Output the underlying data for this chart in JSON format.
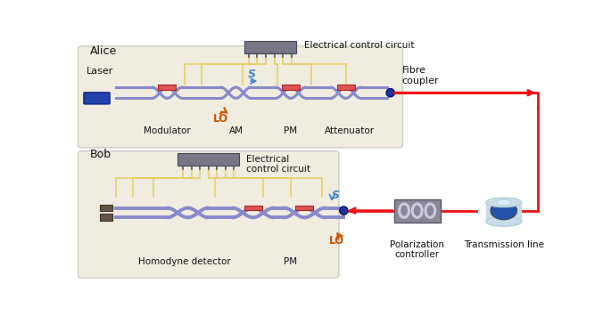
{
  "bg_color": "#ffffff",
  "chip_color": "#f0ece0",
  "chip_border": "#d0ccc0",
  "waveguide_color": "#8888cc",
  "waveguide_lo_color": "#9999dd",
  "wire_color": "#e8cc60",
  "wire_edge": "#c8aa40",
  "red_line_color": "#ee1111",
  "laser_color": "#2244aa",
  "coupler_color": "#223399",
  "heater_fill": "#dd5555",
  "heater_edge": "#aa2222",
  "ic_color": "#777788",
  "ic_leg_color": "#555566",
  "pol_bg": "#888899",
  "pol_oval": "#ccccdd",
  "spool_outer": "#c8dce8",
  "spool_rim": "#b0ccd8",
  "spool_inner": "#2255aa",
  "spool_inner_dark": "#334466",
  "lo_orange": "#cc5500",
  "s_blue": "#4488cc",
  "black": "#111111",
  "texts": {
    "alice": "Alice",
    "bob": "Bob",
    "elec_alice": "Electrical control circuit",
    "elec_bob": "Electrical\ncontrol circuit",
    "laser": "Laser",
    "modulator": "Modulator",
    "lo": "LO",
    "s": "S",
    "am": "AM",
    "pm_alice": "PM",
    "pm_bob": "PM",
    "attenuator": "Attenuator",
    "fibre": "Fibre\ncoupler",
    "homodyne": "Homodyne detector",
    "pol_ctrl": "Polarization\ncontroller",
    "transmission": "Transmission line"
  }
}
